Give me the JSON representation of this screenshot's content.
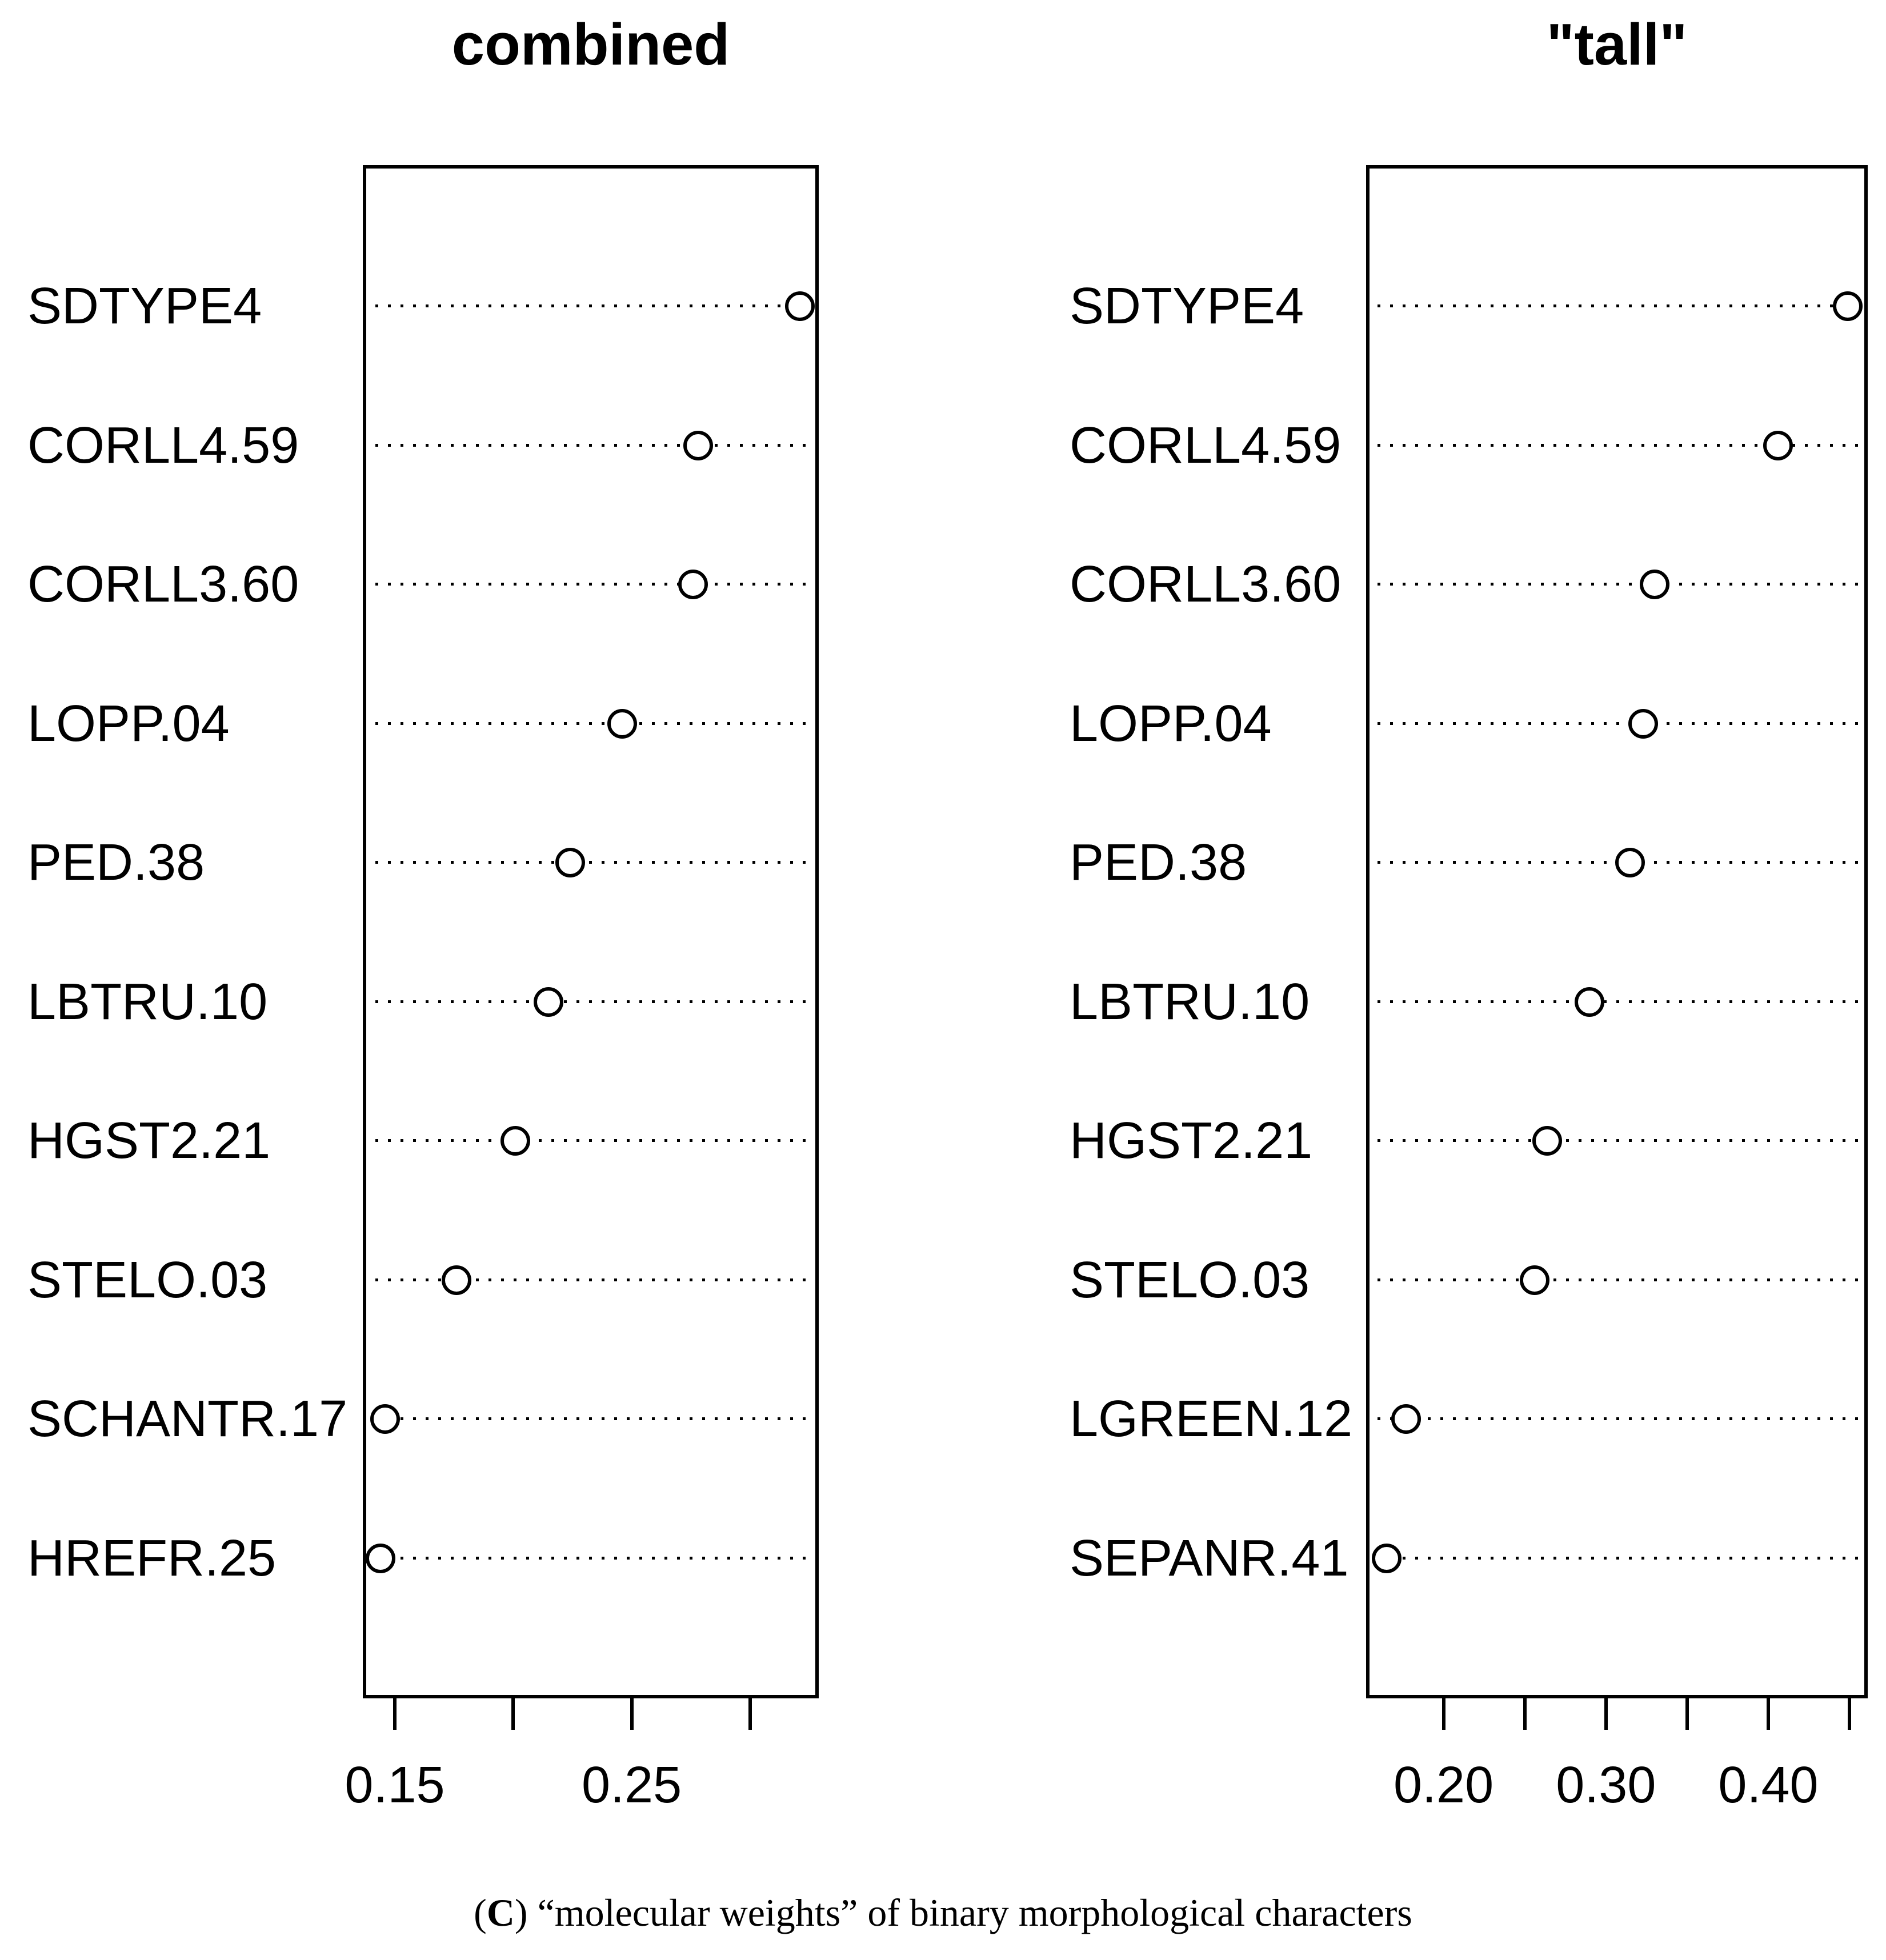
{
  "figure": {
    "background": "#ffffff",
    "foreground": "#000000",
    "point_style": "open-circle",
    "line_style": "dotted"
  },
  "chart_data": [
    {
      "type": "scatter",
      "variant": "dotchart",
      "title": "combined",
      "categories": [
        "SDTYPE4",
        "CORLL4.59",
        "CORLL3.60",
        "LOPP.04",
        "PED.38",
        "LBTRU.10",
        "HGST2.21",
        "STELO.03",
        "SCHANTR.17",
        "HREFR.25"
      ],
      "values": [
        0.321,
        0.278,
        0.276,
        0.246,
        0.224,
        0.215,
        0.201,
        0.176,
        0.146,
        0.144
      ],
      "xlabel": "",
      "ylabel": "",
      "xlim": [
        0.137,
        0.331
      ],
      "grid": "dotted-row-lines",
      "legend": "none",
      "xticks": [
        {
          "value": 0.15,
          "label": "0.15"
        },
        {
          "value": 0.2,
          "label": ""
        },
        {
          "value": 0.25,
          "label": "0.25"
        },
        {
          "value": 0.3,
          "label": ""
        }
      ]
    },
    {
      "type": "scatter",
      "variant": "dotchart",
      "title": "\"tall\"",
      "categories": [
        "SDTYPE4",
        "CORLL4.59",
        "CORLL3.60",
        "LOPP.04",
        "PED.38",
        "LBTRU.10",
        "HGST2.21",
        "STELO.03",
        "LGREEN.12",
        "SEPANR.41"
      ],
      "values": [
        0.449,
        0.406,
        0.33,
        0.323,
        0.315,
        0.29,
        0.264,
        0.256,
        0.177,
        0.165
      ],
      "xlabel": "",
      "ylabel": "",
      "xlim": [
        0.153,
        0.461
      ],
      "grid": "dotted-row-lines",
      "legend": "none",
      "xticks": [
        {
          "value": 0.2,
          "label": "0.20"
        },
        {
          "value": 0.25,
          "label": ""
        },
        {
          "value": 0.3,
          "label": "0.30"
        },
        {
          "value": 0.35,
          "label": ""
        },
        {
          "value": 0.4,
          "label": "0.40"
        },
        {
          "value": 0.45,
          "label": ""
        }
      ]
    }
  ],
  "caption": {
    "open": "(",
    "letter": "C",
    "close": ") ",
    "text": "“molecular weights” of binary morphological characters"
  }
}
